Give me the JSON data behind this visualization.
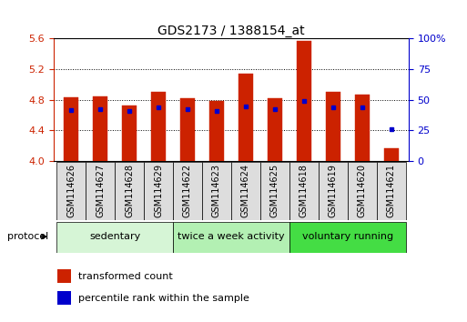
{
  "title": "GDS2173 / 1388154_at",
  "samples": [
    "GSM114626",
    "GSM114627",
    "GSM114628",
    "GSM114629",
    "GSM114622",
    "GSM114623",
    "GSM114624",
    "GSM114625",
    "GSM114618",
    "GSM114619",
    "GSM114620",
    "GSM114621"
  ],
  "red_values": [
    4.83,
    4.85,
    4.73,
    4.9,
    4.82,
    4.79,
    5.14,
    4.82,
    5.57,
    4.9,
    4.87,
    4.17
  ],
  "blue_values_left": [
    4.67,
    4.68,
    4.65,
    4.7,
    4.68,
    4.65,
    4.71,
    4.68,
    4.78,
    4.7,
    4.7,
    4.42
  ],
  "ylim_left": [
    4.0,
    5.6
  ],
  "ylim_right": [
    0,
    100
  ],
  "yticks_left": [
    4.0,
    4.4,
    4.8,
    5.2,
    5.6
  ],
  "yticks_right": [
    0,
    25,
    50,
    75,
    100
  ],
  "groups": [
    {
      "label": "sedentary",
      "start": 0,
      "end": 4,
      "color": "#d6f5d6"
    },
    {
      "label": "twice a week activity",
      "start": 4,
      "end": 8,
      "color": "#b3f0b3"
    },
    {
      "label": "voluntary running",
      "start": 8,
      "end": 12,
      "color": "#44dd44"
    }
  ],
  "bar_color": "#cc2200",
  "blue_marker_color": "#0000cc",
  "bar_width": 0.5,
  "base_value": 4.0,
  "legend_red_label": "transformed count",
  "legend_blue_label": "percentile rank within the sample",
  "protocol_label": "protocol",
  "background_color": "#ffffff",
  "plot_bg_color": "#ffffff",
  "tick_color_left": "#cc2200",
  "tick_color_right": "#0000cc",
  "sample_box_color": "#dddddd",
  "title_fontsize": 10,
  "axis_fontsize": 8,
  "legend_fontsize": 8,
  "sample_fontsize": 7
}
